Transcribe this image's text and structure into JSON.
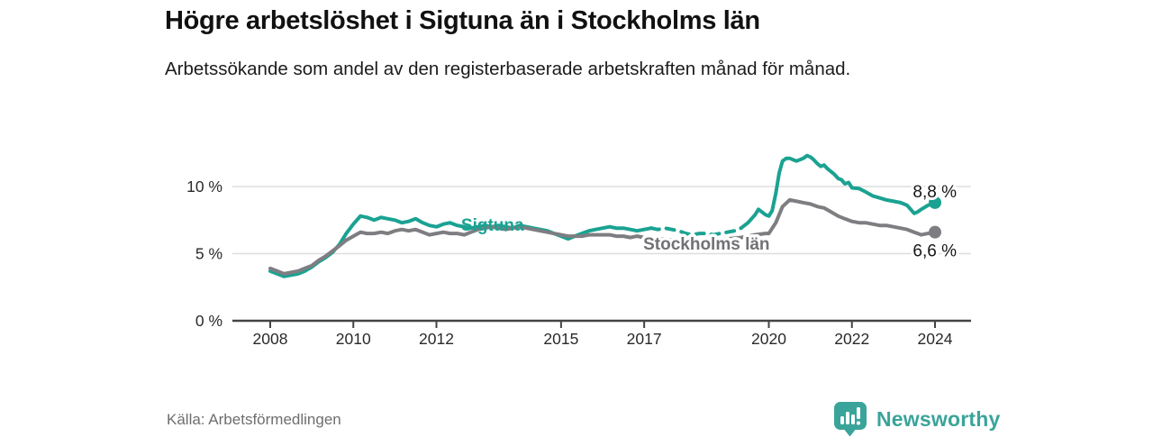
{
  "header": {
    "title": "Högre arbetslöshet i Sigtuna än i Stockholms län",
    "subtitle": "Arbetssökande som andel av den registerbaserade arbetskraften månad för månad."
  },
  "footer": {
    "source": "Källa: Arbetsförmedlingen",
    "brand": "Newsworthy",
    "brand_icon": "newsworthy-bubble-barchart-icon"
  },
  "colors": {
    "sigtuna": "#1aa292",
    "stockholm": "#7e7e82",
    "stockholm_label": "#717176",
    "axis": "#444444",
    "grid": "#dedede",
    "tick_text": "#2a2a2a",
    "value_text": "#161616",
    "brand": "#3aa49a",
    "background": "#ffffff"
  },
  "chart_data": {
    "type": "line",
    "title": "Högre arbetslöshet i Sigtuna än i Stockholms län",
    "ylabel": "",
    "xlabel": "",
    "grid": "horizontal",
    "legend_position": "inline-on-line",
    "x_range": [
      2008,
      2024.85
    ],
    "y_range": [
      0,
      13.8
    ],
    "x_ticks": [
      {
        "value": 2008,
        "label": "2008"
      },
      {
        "value": 2010,
        "label": "2010"
      },
      {
        "value": 2012,
        "label": "2012"
      },
      {
        "value": 2015,
        "label": "2015"
      },
      {
        "value": 2017,
        "label": "2017"
      },
      {
        "value": 2020,
        "label": "2020"
      },
      {
        "value": 2022,
        "label": "2022"
      },
      {
        "value": 2024,
        "label": "2024"
      }
    ],
    "y_ticks": [
      {
        "value": 0,
        "label": "0 %"
      },
      {
        "value": 5,
        "label": "5 %"
      },
      {
        "value": 10,
        "label": "10 %"
      }
    ],
    "series": [
      {
        "name": "Sigtuna",
        "color": "#1aa292",
        "end_label": "8,8 %",
        "end_value": 8.8,
        "dashed_from": 2017.17,
        "dashed_to": 2019.33,
        "inline_label": {
          "x": 2013.35,
          "y": 7.1
        },
        "end_label_y": 9.6,
        "points": [
          [
            2008.0,
            3.7
          ],
          [
            2008.17,
            3.5
          ],
          [
            2008.33,
            3.3
          ],
          [
            2008.5,
            3.4
          ],
          [
            2008.67,
            3.5
          ],
          [
            2008.83,
            3.7
          ],
          [
            2009.0,
            4.0
          ],
          [
            2009.17,
            4.4
          ],
          [
            2009.33,
            4.7
          ],
          [
            2009.5,
            5.1
          ],
          [
            2009.67,
            5.7
          ],
          [
            2009.83,
            6.5
          ],
          [
            2010.0,
            7.2
          ],
          [
            2010.17,
            7.8
          ],
          [
            2010.33,
            7.7
          ],
          [
            2010.5,
            7.5
          ],
          [
            2010.67,
            7.7
          ],
          [
            2010.83,
            7.6
          ],
          [
            2011.0,
            7.5
          ],
          [
            2011.17,
            7.3
          ],
          [
            2011.33,
            7.4
          ],
          [
            2011.5,
            7.6
          ],
          [
            2011.67,
            7.3
          ],
          [
            2011.83,
            7.1
          ],
          [
            2012.0,
            7.0
          ],
          [
            2012.17,
            7.2
          ],
          [
            2012.33,
            7.3
          ],
          [
            2012.5,
            7.1
          ],
          [
            2012.67,
            7.0
          ],
          [
            2012.83,
            6.9
          ],
          [
            2013.0,
            7.0
          ],
          [
            2013.17,
            7.1
          ],
          [
            2013.33,
            7.0
          ],
          [
            2013.5,
            7.1
          ],
          [
            2013.67,
            7.0
          ],
          [
            2013.83,
            6.9
          ],
          [
            2014.0,
            7.1
          ],
          [
            2014.17,
            7.0
          ],
          [
            2014.33,
            6.9
          ],
          [
            2014.5,
            6.8
          ],
          [
            2014.67,
            6.7
          ],
          [
            2014.83,
            6.5
          ],
          [
            2015.0,
            6.3
          ],
          [
            2015.17,
            6.1
          ],
          [
            2015.33,
            6.3
          ],
          [
            2015.5,
            6.5
          ],
          [
            2015.67,
            6.7
          ],
          [
            2015.83,
            6.8
          ],
          [
            2016.0,
            6.9
          ],
          [
            2016.17,
            7.0
          ],
          [
            2016.33,
            6.9
          ],
          [
            2016.5,
            6.9
          ],
          [
            2016.67,
            6.8
          ],
          [
            2016.83,
            6.7
          ],
          [
            2017.0,
            6.8
          ],
          [
            2017.17,
            6.9
          ],
          [
            2017.33,
            6.8
          ],
          [
            2017.5,
            6.9
          ],
          [
            2017.67,
            6.8
          ],
          [
            2017.83,
            6.7
          ],
          [
            2018.0,
            6.5
          ],
          [
            2018.17,
            6.4
          ],
          [
            2018.33,
            6.5
          ],
          [
            2018.5,
            6.5
          ],
          [
            2018.67,
            6.4
          ],
          [
            2018.83,
            6.5
          ],
          [
            2019.0,
            6.6
          ],
          [
            2019.17,
            6.7
          ],
          [
            2019.33,
            6.9
          ],
          [
            2019.5,
            7.3
          ],
          [
            2019.67,
            7.9
          ],
          [
            2019.75,
            8.3
          ],
          [
            2019.92,
            7.9
          ],
          [
            2020.0,
            7.8
          ],
          [
            2020.08,
            8.2
          ],
          [
            2020.17,
            9.5
          ],
          [
            2020.25,
            11.0
          ],
          [
            2020.33,
            11.9
          ],
          [
            2020.42,
            12.1
          ],
          [
            2020.5,
            12.1
          ],
          [
            2020.58,
            12.0
          ],
          [
            2020.67,
            11.9
          ],
          [
            2020.75,
            12.0
          ],
          [
            2020.83,
            12.1
          ],
          [
            2020.92,
            12.3
          ],
          [
            2021.0,
            12.2
          ],
          [
            2021.08,
            12.0
          ],
          [
            2021.17,
            11.7
          ],
          [
            2021.25,
            11.5
          ],
          [
            2021.33,
            11.6
          ],
          [
            2021.42,
            11.3
          ],
          [
            2021.5,
            11.1
          ],
          [
            2021.58,
            10.9
          ],
          [
            2021.67,
            10.6
          ],
          [
            2021.75,
            10.5
          ],
          [
            2021.83,
            10.2
          ],
          [
            2021.92,
            10.3
          ],
          [
            2022.0,
            9.9
          ],
          [
            2022.17,
            9.85
          ],
          [
            2022.33,
            9.6
          ],
          [
            2022.5,
            9.3
          ],
          [
            2022.67,
            9.15
          ],
          [
            2022.83,
            9.0
          ],
          [
            2023.0,
            8.9
          ],
          [
            2023.17,
            8.8
          ],
          [
            2023.33,
            8.6
          ],
          [
            2023.5,
            8.0
          ],
          [
            2023.58,
            8.1
          ],
          [
            2023.67,
            8.3
          ],
          [
            2023.83,
            8.6
          ],
          [
            2024.0,
            8.8
          ]
        ]
      },
      {
        "name": "Stockholms län",
        "color": "#7e7e82",
        "end_label": "6,6 %",
        "end_value": 6.6,
        "dashed_from": null,
        "dashed_to": null,
        "inline_label": {
          "x": 2018.5,
          "y": 5.7
        },
        "end_label_y": 5.2,
        "points": [
          [
            2008.0,
            3.9
          ],
          [
            2008.17,
            3.7
          ],
          [
            2008.33,
            3.5
          ],
          [
            2008.5,
            3.6
          ],
          [
            2008.67,
            3.7
          ],
          [
            2008.83,
            3.9
          ],
          [
            2009.0,
            4.1
          ],
          [
            2009.17,
            4.5
          ],
          [
            2009.33,
            4.8
          ],
          [
            2009.5,
            5.2
          ],
          [
            2009.67,
            5.6
          ],
          [
            2009.83,
            6.0
          ],
          [
            2010.0,
            6.3
          ],
          [
            2010.17,
            6.6
          ],
          [
            2010.33,
            6.5
          ],
          [
            2010.5,
            6.5
          ],
          [
            2010.67,
            6.6
          ],
          [
            2010.83,
            6.5
          ],
          [
            2011.0,
            6.7
          ],
          [
            2011.17,
            6.8
          ],
          [
            2011.33,
            6.7
          ],
          [
            2011.5,
            6.8
          ],
          [
            2011.67,
            6.6
          ],
          [
            2011.83,
            6.4
          ],
          [
            2012.0,
            6.5
          ],
          [
            2012.17,
            6.6
          ],
          [
            2012.33,
            6.5
          ],
          [
            2012.5,
            6.5
          ],
          [
            2012.67,
            6.4
          ],
          [
            2012.83,
            6.6
          ],
          [
            2013.0,
            6.8
          ],
          [
            2013.17,
            6.9
          ],
          [
            2013.33,
            7.0
          ],
          [
            2013.5,
            6.9
          ],
          [
            2013.67,
            6.8
          ],
          [
            2013.83,
            6.9
          ],
          [
            2014.0,
            7.0
          ],
          [
            2014.17,
            6.9
          ],
          [
            2014.33,
            6.8
          ],
          [
            2014.5,
            6.7
          ],
          [
            2014.67,
            6.6
          ],
          [
            2014.83,
            6.5
          ],
          [
            2015.0,
            6.4
          ],
          [
            2015.17,
            6.3
          ],
          [
            2015.33,
            6.3
          ],
          [
            2015.5,
            6.3
          ],
          [
            2015.67,
            6.4
          ],
          [
            2015.83,
            6.4
          ],
          [
            2016.0,
            6.4
          ],
          [
            2016.17,
            6.4
          ],
          [
            2016.33,
            6.3
          ],
          [
            2016.5,
            6.3
          ],
          [
            2016.67,
            6.2
          ],
          [
            2016.83,
            6.3
          ],
          [
            2017.0,
            6.2
          ],
          [
            2017.17,
            6.2
          ],
          [
            2017.33,
            6.1
          ],
          [
            2017.5,
            6.1
          ],
          [
            2017.67,
            6.0
          ],
          [
            2017.83,
            6.0
          ],
          [
            2018.0,
            5.9
          ],
          [
            2018.33,
            5.9
          ],
          [
            2018.67,
            6.0
          ],
          [
            2019.0,
            6.1
          ],
          [
            2019.33,
            6.2
          ],
          [
            2019.67,
            6.4
          ],
          [
            2019.92,
            6.5
          ],
          [
            2020.0,
            6.5
          ],
          [
            2020.17,
            7.3
          ],
          [
            2020.33,
            8.5
          ],
          [
            2020.5,
            9.0
          ],
          [
            2020.67,
            8.9
          ],
          [
            2020.83,
            8.8
          ],
          [
            2021.0,
            8.7
          ],
          [
            2021.17,
            8.5
          ],
          [
            2021.33,
            8.4
          ],
          [
            2021.5,
            8.1
          ],
          [
            2021.67,
            7.8
          ],
          [
            2021.83,
            7.6
          ],
          [
            2022.0,
            7.4
          ],
          [
            2022.17,
            7.3
          ],
          [
            2022.33,
            7.3
          ],
          [
            2022.5,
            7.2
          ],
          [
            2022.67,
            7.1
          ],
          [
            2022.83,
            7.1
          ],
          [
            2023.0,
            7.0
          ],
          [
            2023.17,
            6.9
          ],
          [
            2023.33,
            6.8
          ],
          [
            2023.5,
            6.6
          ],
          [
            2023.67,
            6.4
          ],
          [
            2023.83,
            6.5
          ],
          [
            2024.0,
            6.6
          ]
        ]
      }
    ]
  }
}
